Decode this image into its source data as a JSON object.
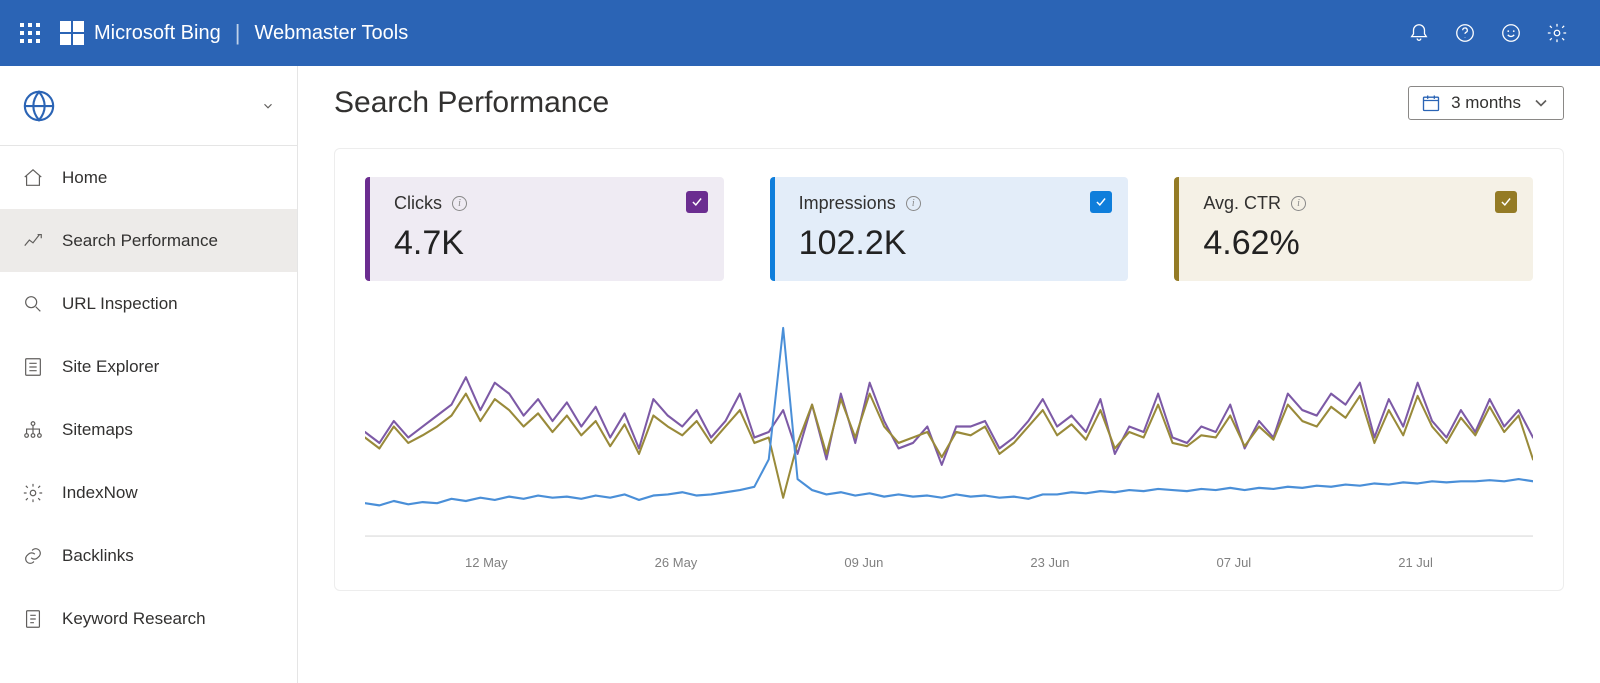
{
  "header": {
    "brand": "Microsoft Bing",
    "sub": "Webmaster Tools"
  },
  "sidebar": {
    "items": [
      {
        "label": "Home",
        "icon": "home",
        "active": false
      },
      {
        "label": "Search Performance",
        "icon": "trend",
        "active": true
      },
      {
        "label": "URL Inspection",
        "icon": "search",
        "active": false
      },
      {
        "label": "Site Explorer",
        "icon": "list",
        "active": false
      },
      {
        "label": "Sitemaps",
        "icon": "sitemap",
        "active": false
      },
      {
        "label": "IndexNow",
        "icon": "gear",
        "active": false
      },
      {
        "label": "Backlinks",
        "icon": "link",
        "active": false
      },
      {
        "label": "Keyword Research",
        "icon": "doc",
        "active": false
      }
    ]
  },
  "page": {
    "title": "Search Performance",
    "date_range": "3 months"
  },
  "cards": [
    {
      "label": "Clicks",
      "value": "4.7K",
      "bg": "#efebf3",
      "accent": "#6b2d90",
      "check": "#6b2d90"
    },
    {
      "label": "Impressions",
      "value": "102.2K",
      "bg": "#e3edf9",
      "accent": "#0f7edb",
      "check": "#0f7edb"
    },
    {
      "label": "Avg. CTR",
      "value": "4.62%",
      "bg": "#f5f1e6",
      "accent": "#947b25",
      "check": "#947b25"
    }
  ],
  "chart": {
    "type": "line",
    "x_labels": [
      "12 May",
      "26 May",
      "09 Jun",
      "23 Jun",
      "07 Jul",
      "21 Jul"
    ],
    "baseline_color": "#d9d9d9",
    "series": [
      {
        "name": "Clicks",
        "color": "#7d5aa6",
        "width": 2,
        "points": [
          105,
          115,
          95,
          110,
          100,
          90,
          80,
          55,
          85,
          60,
          70,
          90,
          75,
          95,
          78,
          100,
          82,
          110,
          88,
          120,
          75,
          90,
          100,
          85,
          110,
          95,
          70,
          110,
          105,
          85,
          125,
          80,
          130,
          70,
          115,
          60,
          95,
          120,
          115,
          100,
          135,
          100,
          100,
          95,
          120,
          110,
          95,
          75,
          100,
          90,
          105,
          75,
          125,
          100,
          105,
          70,
          110,
          115,
          100,
          105,
          80,
          120,
          95,
          110,
          70,
          85,
          90,
          70,
          80,
          60,
          110,
          75,
          100,
          60,
          95,
          110,
          85,
          105,
          75,
          100,
          85,
          110
        ]
      },
      {
        "name": "CTR",
        "color": "#998a3a",
        "width": 2,
        "points": [
          110,
          120,
          100,
          115,
          108,
          100,
          90,
          70,
          95,
          75,
          85,
          100,
          88,
          105,
          90,
          108,
          95,
          118,
          98,
          125,
          90,
          100,
          108,
          95,
          115,
          100,
          85,
          115,
          110,
          165,
          115,
          80,
          125,
          75,
          110,
          70,
          100,
          115,
          110,
          105,
          128,
          105,
          108,
          100,
          125,
          115,
          100,
          85,
          108,
          98,
          112,
          85,
          120,
          105,
          110,
          80,
          115,
          118,
          108,
          110,
          90,
          118,
          100,
          112,
          80,
          95,
          100,
          82,
          92,
          72,
          115,
          85,
          108,
          72,
          100,
          115,
          92,
          108,
          82,
          105,
          90,
          130
        ]
      },
      {
        "name": "Impressions",
        "color": "#4a8fd8",
        "width": 2,
        "points": [
          170,
          172,
          168,
          171,
          169,
          170,
          166,
          168,
          165,
          167,
          164,
          166,
          163,
          165,
          164,
          166,
          163,
          165,
          162,
          167,
          163,
          162,
          160,
          163,
          162,
          160,
          158,
          155,
          130,
          10,
          148,
          158,
          162,
          160,
          163,
          161,
          164,
          162,
          164,
          163,
          165,
          162,
          164,
          163,
          165,
          164,
          166,
          162,
          162,
          160,
          161,
          159,
          160,
          158,
          159,
          157,
          158,
          159,
          157,
          158,
          156,
          158,
          156,
          157,
          155,
          156,
          154,
          155,
          153,
          154,
          152,
          153,
          151,
          152,
          150,
          151,
          150,
          150,
          149,
          150,
          148,
          150
        ]
      }
    ]
  }
}
